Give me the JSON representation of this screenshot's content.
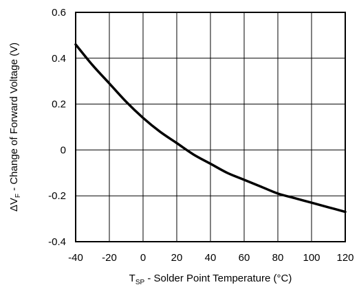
{
  "chart_data": {
    "type": "line",
    "title": "",
    "xlabel": {
      "prefix": "T",
      "sub": "SP",
      "rest": " - Solder Point Temperature (°C)"
    },
    "ylabel": {
      "prefix": "ΔV",
      "sub": "F",
      "rest": " - Change of Forward Voltage (V)"
    },
    "xlim": [
      -40,
      120
    ],
    "ylim": [
      -0.4,
      0.6
    ],
    "x_ticks": [
      -40,
      -20,
      0,
      20,
      40,
      60,
      80,
      100,
      120
    ],
    "x_tick_labels": [
      "-40",
      "-20",
      "0",
      "20",
      "40",
      "60",
      "80",
      "100",
      "120"
    ],
    "y_ticks": [
      -0.4,
      -0.2,
      0,
      0.2,
      0.4,
      0.6
    ],
    "y_tick_labels": [
      "-0.4",
      "-0.2",
      "0",
      "0.2",
      "0.4",
      "0.6"
    ],
    "grid": true,
    "series": [
      {
        "color": "#000000",
        "x": [
          -40,
          -30,
          -20,
          -10,
          0,
          10,
          20,
          30,
          40,
          50,
          60,
          70,
          80,
          90,
          100,
          110,
          120
        ],
        "y": [
          0.46,
          0.37,
          0.29,
          0.21,
          0.14,
          0.08,
          0.03,
          -0.02,
          -0.06,
          -0.1,
          -0.13,
          -0.16,
          -0.19,
          -0.21,
          -0.23,
          -0.25,
          -0.27
        ]
      }
    ]
  }
}
